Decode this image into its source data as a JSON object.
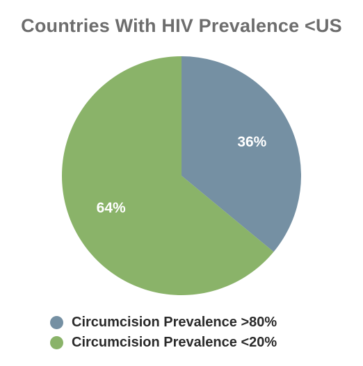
{
  "chart_data": {
    "type": "pie",
    "title": "Countries With HIV Prevalence <US",
    "slices": [
      {
        "label": "Circumcision Prevalence >80%",
        "value": 36,
        "display": "36%",
        "color": "#7590a3"
      },
      {
        "label": "Circumcision Prevalence <20%",
        "value": 64,
        "display": "64%",
        "color": "#8ab369"
      }
    ],
    "legend_position": "bottom"
  }
}
